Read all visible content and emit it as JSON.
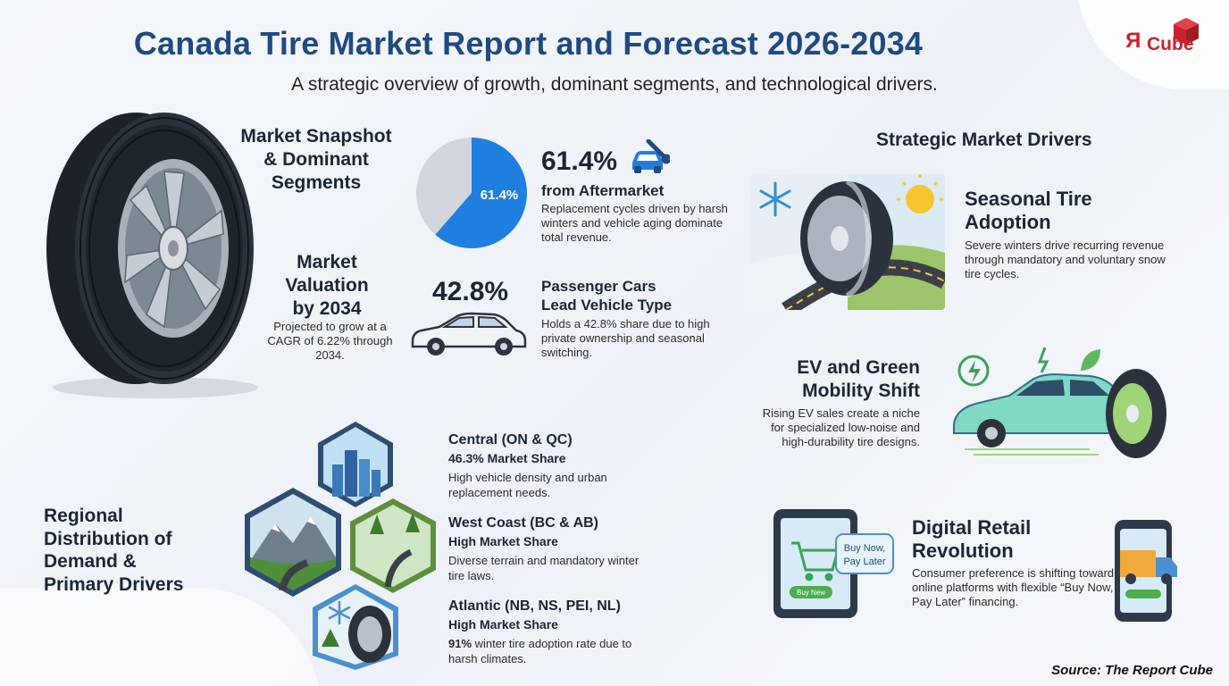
{
  "header": {
    "title": "Canada Tire Market Report and Forecast 2026-2034",
    "subtitle": "A strategic overview of growth, dominant segments, and technological drivers."
  },
  "logo": {
    "letter": "R",
    "text": "Cube"
  },
  "snapshot": {
    "heading_line1": "Market Snapshot",
    "heading_line2": "& Dominant",
    "heading_line3": "Segments",
    "aftermarket": {
      "pie_value": 61.4,
      "pie_label": "61.4%",
      "value": "61.4%",
      "heading": "from Aftermarket",
      "text": "Replacement cycles driven by harsh winters and vehicle aging dominate total revenue."
    },
    "passenger": {
      "value": "42.8%",
      "heading_line1": "Passenger Cars",
      "heading_line2": "Lead Vehicle Type",
      "text": "Holds a 42.8% share due to high private ownership and seasonal switching."
    },
    "valuation": {
      "heading_line1": "Market",
      "heading_line2": "Valuation",
      "heading_line3": "by 2034",
      "text": "Projected to grow at a CAGR of 6.22% through 2034."
    }
  },
  "drivers": {
    "heading": "Strategic Market Drivers",
    "seasonal": {
      "heading_line1": "Seasonal Tire",
      "heading_line2": "Adoption",
      "text": "Severe winters drive recurring revenue through mandatory and voluntary snow tire cycles."
    },
    "ev": {
      "heading_line1": "EV and Green",
      "heading_line2": "Mobility Shift",
      "text": "Rising EV sales create a niche for specialized low-noise and high-durability tire designs."
    },
    "digital": {
      "heading_line1": "Digital Retail",
      "heading_line2": "Revolution",
      "text": "Consumer preference is shifting toward online platforms with flexible “Buy Now, Pay Later” financing.",
      "bubble_line1": "Buy Now,",
      "bubble_line2": "Pay Later",
      "button": "Buy New"
    }
  },
  "regional": {
    "heading_line1": "Regional",
    "heading_line2": "Distribution of",
    "heading_line3": "Demand &",
    "heading_line4": "Primary Drivers",
    "regions": [
      {
        "name": "Central (ON & QC)",
        "share": "46.3% Market Share",
        "text": "High vehicle density and urban replacement needs."
      },
      {
        "name": "West Coast (BC & AB)",
        "share": "High Market Share",
        "text": "Diverse terrain and mandatory winter tire laws."
      },
      {
        "name": "Atlantic (NB, NS, PEI, NL)",
        "share": "High Market Share",
        "text_bold": "91%",
        "text": " winter tire adoption rate due to harsh climates."
      }
    ]
  },
  "source": "Source: The Report Cube",
  "colors": {
    "title": "#1f4a82",
    "pie_primary": "#1f7fe0",
    "pie_rest": "#d3d6dc",
    "logo": "#c8232c"
  }
}
